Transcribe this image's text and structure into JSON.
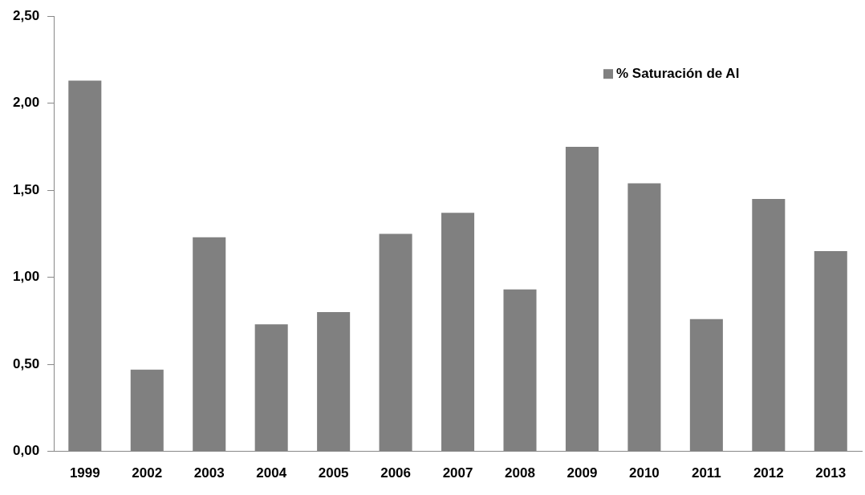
{
  "chart_data": {
    "type": "bar",
    "categories": [
      "1999",
      "2002",
      "2003",
      "2004",
      "2005",
      "2006",
      "2007",
      "2008",
      "2009",
      "2010",
      "2011",
      "2012",
      "2013"
    ],
    "series": [
      {
        "name": "% Saturación de Al",
        "color": "#808080",
        "values": [
          2.13,
          0.47,
          1.23,
          0.73,
          0.8,
          1.25,
          1.37,
          0.93,
          1.75,
          1.54,
          0.76,
          1.45,
          1.15
        ]
      }
    ],
    "ylim": [
      0,
      2.5
    ],
    "yticks": [
      {
        "value": 0,
        "label": "0,00"
      },
      {
        "value": 0.5,
        "label": "0,50"
      },
      {
        "value": 1,
        "label": "1,00"
      },
      {
        "value": 1.5,
        "label": "1,50"
      },
      {
        "value": 2,
        "label": "2,00"
      },
      {
        "value": 2.5,
        "label": "2,50"
      }
    ],
    "grid": false,
    "legend": "top right"
  }
}
